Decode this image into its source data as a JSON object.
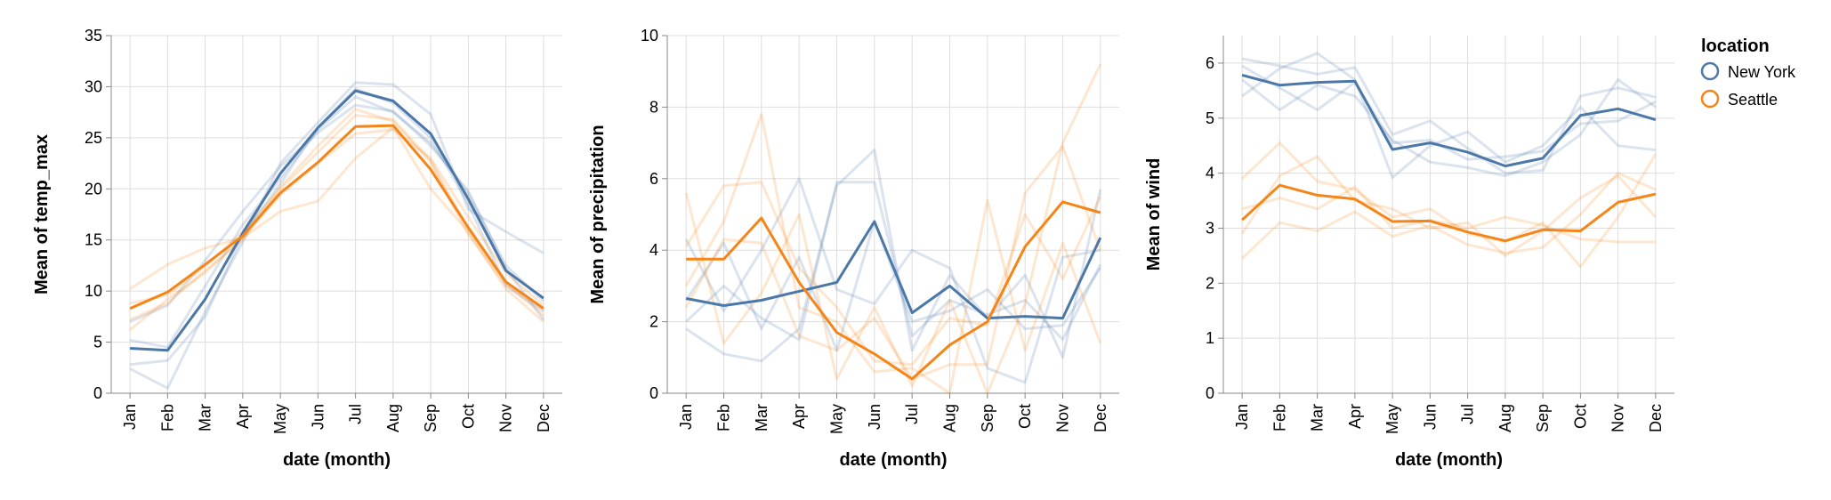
{
  "legend": {
    "title": "location",
    "entries": [
      {
        "name": "New York",
        "color": "#4c78a8"
      },
      {
        "name": "Seattle",
        "color": "#f58518"
      }
    ]
  },
  "chart_data": [
    {
      "type": "line",
      "xlabel": "date (month)",
      "ylabel": "Mean of temp_max",
      "ylim": [
        0,
        35
      ],
      "yticks": [
        0,
        5,
        10,
        15,
        20,
        25,
        30,
        35
      ],
      "categories": [
        "Jan",
        "Feb",
        "Mar",
        "Apr",
        "May",
        "Jun",
        "Jul",
        "Aug",
        "Sep",
        "Oct",
        "Nov",
        "Dec"
      ],
      "grid": true,
      "series": [
        {
          "name": "New York",
          "values": [
            4.4,
            4.2,
            9.2,
            15.7,
            21.5,
            26.0,
            29.6,
            28.6,
            25.4,
            19.0,
            12.0,
            9.3
          ]
        },
        {
          "name": "Seattle",
          "values": [
            8.3,
            9.9,
            12.6,
            15.4,
            19.6,
            22.6,
            26.1,
            26.2,
            21.9,
            16.2,
            10.9,
            8.3
          ]
        }
      ],
      "faint_series": [
        {
          "name": "New York",
          "values": [
            2.4,
            0.5,
            8.0,
            14.8,
            22.5,
            26.5,
            30.4,
            30.2,
            27.3,
            18.0,
            15.8,
            13.7
          ]
        },
        {
          "name": "New York",
          "values": [
            5.2,
            4.5,
            10.5,
            16.5,
            21.0,
            25.8,
            29.0,
            27.5,
            24.5,
            19.5,
            12.5,
            9.0
          ]
        },
        {
          "name": "New York",
          "values": [
            2.8,
            3.2,
            7.5,
            15.5,
            20.5,
            26.0,
            29.8,
            28.4,
            25.0,
            18.5,
            10.5,
            8.0
          ]
        },
        {
          "name": "New York",
          "values": [
            7.0,
            8.6,
            13.0,
            17.8,
            22.2,
            25.5,
            28.2,
            27.6,
            24.2,
            19.8,
            12.2,
            7.2
          ]
        },
        {
          "name": "Seattle",
          "values": [
            10.2,
            12.6,
            14.2,
            15.2,
            17.8,
            18.8,
            23.0,
            26.0,
            20.0,
            15.8,
            10.2,
            7.0
          ]
        },
        {
          "name": "Seattle",
          "values": [
            7.2,
            8.8,
            12.0,
            15.0,
            20.2,
            24.2,
            27.8,
            26.6,
            22.6,
            15.5,
            10.6,
            8.2
          ]
        },
        {
          "name": "Seattle",
          "values": [
            6.2,
            9.2,
            11.8,
            15.2,
            19.4,
            22.5,
            25.4,
            25.8,
            23.0,
            17.2,
            11.8,
            8.6
          ]
        },
        {
          "name": "Seattle",
          "values": [
            8.8,
            9.6,
            12.4,
            15.8,
            20.0,
            23.6,
            27.2,
            26.8,
            22.8,
            16.0,
            10.8,
            7.6
          ]
        }
      ]
    },
    {
      "type": "line",
      "xlabel": "date (month)",
      "ylabel": "Mean of precipitation",
      "ylim": [
        0,
        10
      ],
      "yticks": [
        0,
        2,
        4,
        6,
        8,
        10
      ],
      "categories": [
        "Jan",
        "Feb",
        "Mar",
        "Apr",
        "May",
        "Jun",
        "Jul",
        "Aug",
        "Sep",
        "Oct",
        "Nov",
        "Dec"
      ],
      "grid": true,
      "series": [
        {
          "name": "New York",
          "values": [
            2.65,
            2.45,
            2.6,
            2.85,
            3.1,
            4.8,
            2.25,
            3.0,
            2.1,
            2.15,
            2.1,
            4.35
          ]
        },
        {
          "name": "Seattle",
          "values": [
            3.75,
            3.75,
            4.9,
            3.1,
            1.7,
            1.1,
            0.4,
            1.35,
            2.0,
            4.1,
            5.35,
            5.05
          ]
        }
      ],
      "faint_series": [
        {
          "name": "New York",
          "values": [
            1.8,
            1.1,
            0.9,
            1.8,
            5.8,
            6.8,
            1.2,
            3.3,
            2.1,
            3.3,
            1.0,
            5.7
          ]
        },
        {
          "name": "New York",
          "values": [
            4.3,
            2.3,
            4.0,
            6.0,
            2.9,
            2.5,
            4.0,
            3.5,
            0.7,
            0.3,
            3.8,
            4.0
          ]
        },
        {
          "name": "New York",
          "values": [
            2.0,
            3.0,
            2.1,
            1.5,
            5.9,
            5.9,
            1.6,
            2.6,
            2.2,
            2.6,
            1.5,
            3.6
          ]
        },
        {
          "name": "New York",
          "values": [
            2.6,
            4.2,
            1.8,
            3.8,
            1.2,
            4.8,
            2.0,
            2.3,
            2.9,
            1.8,
            1.9,
            3.5
          ]
        },
        {
          "name": "Seattle",
          "values": [
            5.6,
            1.4,
            2.8,
            5.0,
            0.4,
            2.4,
            0.2,
            2.6,
            0.0,
            2.5,
            7.0,
            9.2
          ]
        },
        {
          "name": "Seattle",
          "values": [
            3.0,
            4.8,
            7.8,
            2.4,
            2.0,
            0.6,
            0.7,
            0.0,
            5.4,
            1.2,
            4.2,
            1.4
          ]
        },
        {
          "name": "Seattle",
          "values": [
            2.4,
            4.3,
            4.2,
            1.6,
            1.2,
            2.1,
            0.4,
            0.8,
            0.8,
            5.6,
            6.9,
            4.0
          ]
        },
        {
          "name": "Seattle",
          "values": [
            4.1,
            5.8,
            5.9,
            3.5,
            2.4,
            0.9,
            0.8,
            2.1,
            1.9,
            5.0,
            3.2,
            5.5
          ]
        }
      ]
    },
    {
      "type": "line",
      "xlabel": "date (month)",
      "ylabel": "Mean of wind",
      "ylim": [
        0,
        6.5
      ],
      "yticks": [
        0,
        1,
        2,
        3,
        4,
        5,
        6
      ],
      "categories": [
        "Jan",
        "Feb",
        "Mar",
        "Apr",
        "May",
        "Jun",
        "Jul",
        "Aug",
        "Sep",
        "Oct",
        "Nov",
        "Dec"
      ],
      "grid": true,
      "series": [
        {
          "name": "New York",
          "values": [
            5.78,
            5.6,
            5.65,
            5.67,
            4.43,
            4.55,
            4.38,
            4.13,
            4.27,
            5.05,
            5.17,
            4.97
          ]
        },
        {
          "name": "Seattle",
          "values": [
            3.15,
            3.78,
            3.6,
            3.53,
            3.12,
            3.13,
            2.93,
            2.77,
            2.97,
            2.95,
            3.47,
            3.62
          ]
        }
      ],
      "faint_series": [
        {
          "name": "New York",
          "values": [
            6.08,
            5.95,
            5.8,
            5.92,
            4.7,
            4.95,
            4.45,
            4.0,
            4.05,
            5.4,
            5.55,
            5.38
          ]
        },
        {
          "name": "New York",
          "values": [
            5.4,
            5.9,
            6.18,
            5.7,
            3.92,
            4.5,
            4.75,
            4.2,
            4.5,
            5.2,
            4.5,
            4.42
          ]
        },
        {
          "name": "New York",
          "values": [
            5.7,
            5.15,
            5.6,
            5.4,
            4.6,
            4.2,
            4.1,
            3.95,
            4.2,
            4.7,
            5.7,
            5.2
          ]
        },
        {
          "name": "New York",
          "values": [
            5.95,
            5.55,
            5.15,
            5.65,
            4.55,
            4.6,
            4.25,
            4.3,
            4.4,
            4.9,
            4.95,
            5.3
          ]
        },
        {
          "name": "Seattle",
          "values": [
            2.45,
            3.1,
            2.95,
            3.3,
            2.85,
            3.05,
            2.7,
            2.55,
            2.65,
            3.25,
            4.0,
            3.7
          ]
        },
        {
          "name": "Seattle",
          "values": [
            3.9,
            4.55,
            3.85,
            3.7,
            3.2,
            3.35,
            2.9,
            2.75,
            3.1,
            2.3,
            3.2,
            4.35
          ]
        },
        {
          "name": "Seattle",
          "values": [
            2.9,
            3.95,
            4.3,
            3.5,
            3.35,
            3.0,
            3.1,
            2.5,
            2.95,
            3.55,
            3.95,
            3.2
          ]
        },
        {
          "name": "Seattle",
          "values": [
            3.35,
            3.55,
            3.35,
            3.75,
            3.0,
            3.15,
            3.0,
            3.2,
            3.05,
            2.8,
            2.75,
            2.75
          ]
        }
      ]
    }
  ]
}
